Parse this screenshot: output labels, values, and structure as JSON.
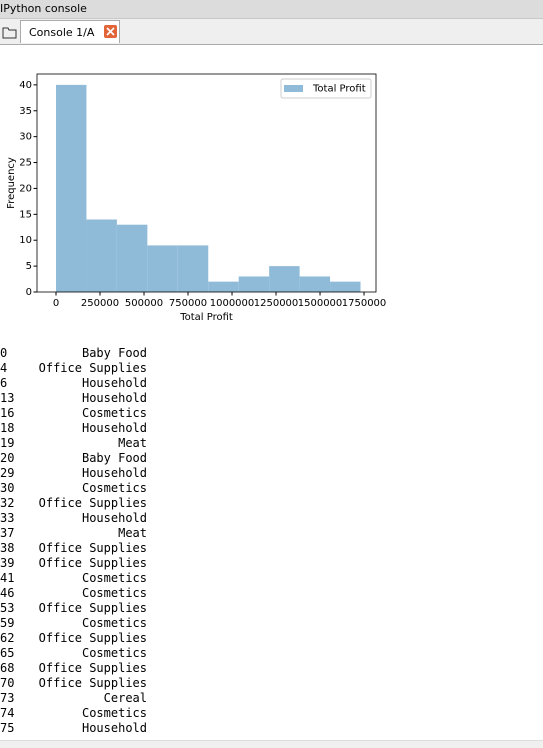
{
  "window": {
    "title": "IPython console",
    "tab": "Console 1/A"
  },
  "chart_data": {
    "type": "histogram",
    "xlabel": "Total Profit",
    "ylabel": "Frequency",
    "bins": [
      0,
      173000,
      346000,
      519000,
      692000,
      865000,
      1038000,
      1211000,
      1384000,
      1557000,
      1730000
    ],
    "series": [
      {
        "name": "Total Profit",
        "color": "#8fbbd9",
        "values": [
          40,
          14,
          13,
          9,
          9,
          2,
          3,
          5,
          3,
          2
        ]
      }
    ],
    "xlim": [
      -108000,
      1818000
    ],
    "xticks": [
      0,
      250000,
      500000,
      750000,
      1000000,
      1250000,
      1500000,
      1750000
    ],
    "ylim": [
      0,
      42.1
    ],
    "yticks": [
      0,
      5,
      10,
      15,
      20,
      25,
      30,
      35,
      40
    ],
    "legend": "upper right"
  },
  "output": {
    "rows": [
      [
        "0",
        "Baby Food"
      ],
      [
        "4",
        "Office Supplies"
      ],
      [
        "6",
        "Household"
      ],
      [
        "13",
        "Household"
      ],
      [
        "16",
        "Cosmetics"
      ],
      [
        "18",
        "Household"
      ],
      [
        "19",
        "Meat"
      ],
      [
        "20",
        "Baby Food"
      ],
      [
        "29",
        "Household"
      ],
      [
        "30",
        "Cosmetics"
      ],
      [
        "32",
        "Office Supplies"
      ],
      [
        "33",
        "Household"
      ],
      [
        "37",
        "Meat"
      ],
      [
        "38",
        "Office Supplies"
      ],
      [
        "39",
        "Office Supplies"
      ],
      [
        "41",
        "Cosmetics"
      ],
      [
        "46",
        "Cosmetics"
      ],
      [
        "53",
        "Office Supplies"
      ],
      [
        "59",
        "Cosmetics"
      ],
      [
        "62",
        "Office Supplies"
      ],
      [
        "65",
        "Cosmetics"
      ],
      [
        "68",
        "Office Supplies"
      ],
      [
        "70",
        "Office Supplies"
      ],
      [
        "73",
        "Cereal"
      ],
      [
        "74",
        "Cosmetics"
      ],
      [
        "75",
        "Household"
      ]
    ]
  }
}
